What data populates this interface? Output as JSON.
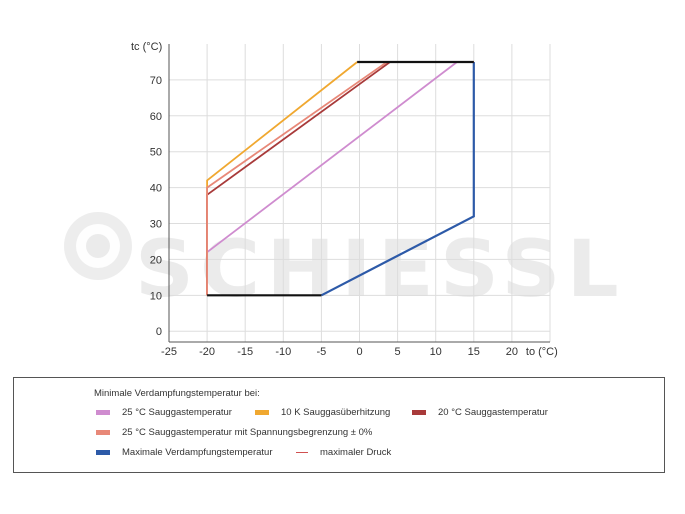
{
  "watermark": {
    "text": "SCHIESSL"
  },
  "colors": {
    "grid": "#dddddd",
    "axis": "#555555",
    "black": "#111111",
    "pink": "#cf8ccf",
    "orange": "#f0a830",
    "darkred": "#a83a3a",
    "salmon": "#e88878",
    "blue": "#2d5aa8",
    "redline": "#d05050"
  },
  "chart_data": {
    "type": "line",
    "xlabel": "to (°C)",
    "ylabel": "tc (°C)",
    "xlim": [
      -25,
      25
    ],
    "ylim": [
      -3,
      80
    ],
    "xticks": [
      -25,
      -20,
      -15,
      -10,
      -5,
      0,
      5,
      10,
      15,
      20
    ],
    "yticks": [
      0,
      10,
      20,
      30,
      40,
      50,
      60,
      70
    ],
    "grid": true,
    "series": [
      {
        "name": "25 °C Sauggastemperatur",
        "color": "#cf8ccf",
        "points": [
          [
            -20,
            22
          ],
          [
            12.8,
            75
          ]
        ]
      },
      {
        "name": "10 K Sauggasüberhitzung",
        "color": "#f0a830",
        "points": [
          [
            -20,
            10
          ],
          [
            -20,
            42
          ],
          [
            -0.3,
            75
          ]
        ]
      },
      {
        "name": "20 °C Sauggastemperatur",
        "color": "#a83a3a",
        "points": [
          [
            -20,
            10
          ],
          [
            -20,
            38
          ],
          [
            4,
            75
          ]
        ]
      },
      {
        "name": "25 °C Sauggastemperatur mit Spannungsbegrenzung ± 0%",
        "color": "#e88878",
        "points": [
          [
            -20,
            10
          ],
          [
            -20,
            40
          ],
          [
            3.6,
            75
          ]
        ]
      },
      {
        "name": "Maximale Verdampfungstemperatur",
        "color": "#2d5aa8",
        "points": [
          [
            -5,
            10
          ],
          [
            15,
            32
          ],
          [
            15,
            75
          ]
        ]
      },
      {
        "name": "maximaler Druck",
        "color": "#d05050",
        "points": [
          [
            -0.3,
            75
          ],
          [
            15,
            75
          ]
        ]
      },
      {
        "name": "",
        "color": "#111111",
        "points": [
          [
            -20,
            10
          ],
          [
            -5,
            10
          ]
        ]
      },
      {
        "name": "",
        "color": "#111111",
        "points": [
          [
            -0.3,
            75
          ],
          [
            15,
            75
          ]
        ]
      }
    ]
  },
  "legend": {
    "heading": "Minimale Verdampfungstemperatur bei:",
    "items": [
      {
        "label": "25 °C Sauggastemperatur",
        "color": "#cf8ccf",
        "style": "bar"
      },
      {
        "label": "10 K Sauggasüberhitzung",
        "color": "#f0a830",
        "style": "bar"
      },
      {
        "label": "20 °C Sauggastemperatur",
        "color": "#a83a3a",
        "style": "bar"
      },
      {
        "label": "25 °C Sauggastemperatur mit Spannungsbegrenzung ± 0%",
        "color": "#e88878",
        "style": "bar"
      },
      {
        "label": "Maximale Verdampfungstemperatur",
        "color": "#2d5aa8",
        "style": "bar"
      },
      {
        "label": "maximaler Druck",
        "color": "#d05050",
        "style": "line"
      }
    ]
  }
}
